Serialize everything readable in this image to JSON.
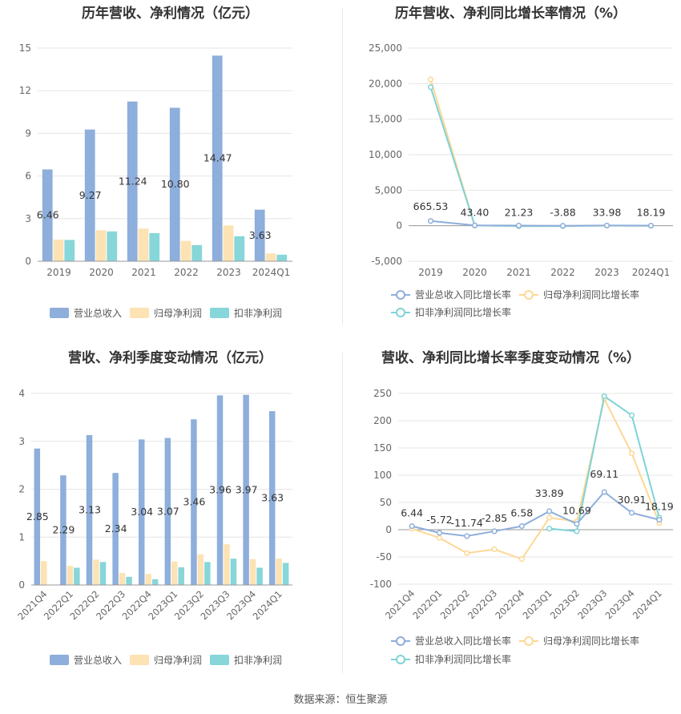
{
  "source_text": "数据来源：恒生聚源",
  "colors": {
    "revenue": "#8eaedb",
    "net_profit": "#fde2b4",
    "deducted_profit": "#87d6d9",
    "rev_line": "#8eaedb",
    "np_line": "#fdd895",
    "dp_line": "#7fd3d6"
  },
  "chart_data": [
    {
      "type": "bar",
      "title": "历年营收、净利情况（亿元）",
      "categories": [
        "2019",
        "2020",
        "2021",
        "2022",
        "2023",
        "2024Q1"
      ],
      "ylim": [
        0,
        15
      ],
      "yticks": [
        "0",
        "3",
        "6",
        "9",
        "12",
        "15"
      ],
      "series": [
        {
          "name": "营业总收入",
          "values": [
            6.46,
            9.27,
            11.24,
            10.8,
            14.47,
            3.63
          ]
        },
        {
          "name": "归母净利润",
          "values": [
            1.52,
            2.18,
            2.3,
            1.43,
            2.52,
            0.55
          ]
        },
        {
          "name": "扣非净利润",
          "values": [
            1.5,
            2.1,
            1.98,
            1.14,
            1.76,
            0.46
          ]
        }
      ],
      "data_labels": [
        "6.46",
        "9.27",
        "11.24",
        "10.80",
        "14.47",
        "3.63"
      ],
      "legend": "bottom",
      "grid": true
    },
    {
      "type": "line",
      "title": "历年营收、净利同比增长率情况（%）",
      "categories": [
        "2019",
        "2020",
        "2021",
        "2022",
        "2023",
        "2024Q1"
      ],
      "ylim": [
        -5000,
        25000
      ],
      "yticks": [
        "-5,000",
        "0",
        "5,000",
        "10,000",
        "15,000",
        "20,000",
        "25,000"
      ],
      "series": [
        {
          "name": "营业总收入同比增长率",
          "values": [
            665.53,
            43.4,
            21.23,
            -3.88,
            33.98,
            18.19
          ]
        },
        {
          "name": "归母净利润同比增长率",
          "values": [
            20600,
            30,
            -50,
            -40,
            10,
            -5
          ]
        },
        {
          "name": "扣非净利润同比增长率",
          "values": [
            19500,
            40,
            -60,
            -45,
            15,
            -10
          ]
        }
      ],
      "data_labels": [
        "665.53",
        "43.40",
        "21.23",
        "-3.88",
        "33.98",
        "18.19"
      ],
      "legend": "bottom",
      "grid": true
    },
    {
      "type": "bar",
      "title": "营收、净利季度变动情况（亿元）",
      "categories": [
        "2021Q4",
        "2022Q1",
        "2022Q2",
        "2022Q3",
        "2022Q4",
        "2023Q1",
        "2023Q2",
        "2023Q3",
        "2023Q4",
        "2024Q1"
      ],
      "ylim": [
        0,
        4
      ],
      "yticks": [
        "0",
        "1",
        "2",
        "3",
        "4"
      ],
      "series": [
        {
          "name": "营业总收入",
          "values": [
            2.85,
            2.29,
            3.13,
            2.34,
            3.04,
            3.07,
            3.46,
            3.96,
            3.97,
            3.63
          ]
        },
        {
          "name": "归母净利润",
          "values": [
            0.5,
            0.4,
            0.53,
            0.25,
            0.23,
            0.49,
            0.64,
            0.85,
            0.54,
            0.55
          ]
        },
        {
          "name": "扣非净利润",
          "values": [
            0.0,
            0.36,
            0.48,
            0.17,
            0.12,
            0.37,
            0.48,
            0.55,
            0.36,
            0.46
          ]
        }
      ],
      "data_labels": [
        "2.85",
        "2.29",
        "3.13",
        "2.34",
        "3.04",
        "3.07",
        "3.46",
        "3.96",
        "3.97",
        "3.63"
      ],
      "legend": "bottom",
      "grid": true
    },
    {
      "type": "line",
      "title": "营收、净利同比增长率季度变动情况（%）",
      "categories": [
        "2021Q4",
        "2022Q1",
        "2022Q2",
        "2022Q3",
        "2022Q4",
        "2023Q1",
        "2023Q2",
        "2023Q3",
        "2023Q4",
        "2024Q1"
      ],
      "ylim": [
        -100,
        250
      ],
      "yticks": [
        "-100",
        "-50",
        "0",
        "50",
        "100",
        "150",
        "200",
        "250"
      ],
      "series": [
        {
          "name": "营业总收入同比增长率",
          "values": [
            6.44,
            -5.72,
            -11.74,
            -2.85,
            6.58,
            33.89,
            10.69,
            69.11,
            30.91,
            18.19
          ]
        },
        {
          "name": "归母净利润同比增长率",
          "values": [
            2,
            -15,
            -43,
            -36,
            -54,
            22,
            15,
            240,
            140,
            12
          ]
        },
        {
          "name": "扣非净利润同比增长率",
          "values": [
            null,
            null,
            null,
            null,
            null,
            2,
            -3,
            245,
            210,
            22
          ]
        }
      ],
      "data_labels": [
        "6.44",
        "-5.72",
        "-11.74",
        "-2.85",
        "6.58",
        "33.89",
        "10.69",
        "69.11",
        "30.91",
        "18.19"
      ],
      "legend": "bottom",
      "grid": true
    }
  ]
}
